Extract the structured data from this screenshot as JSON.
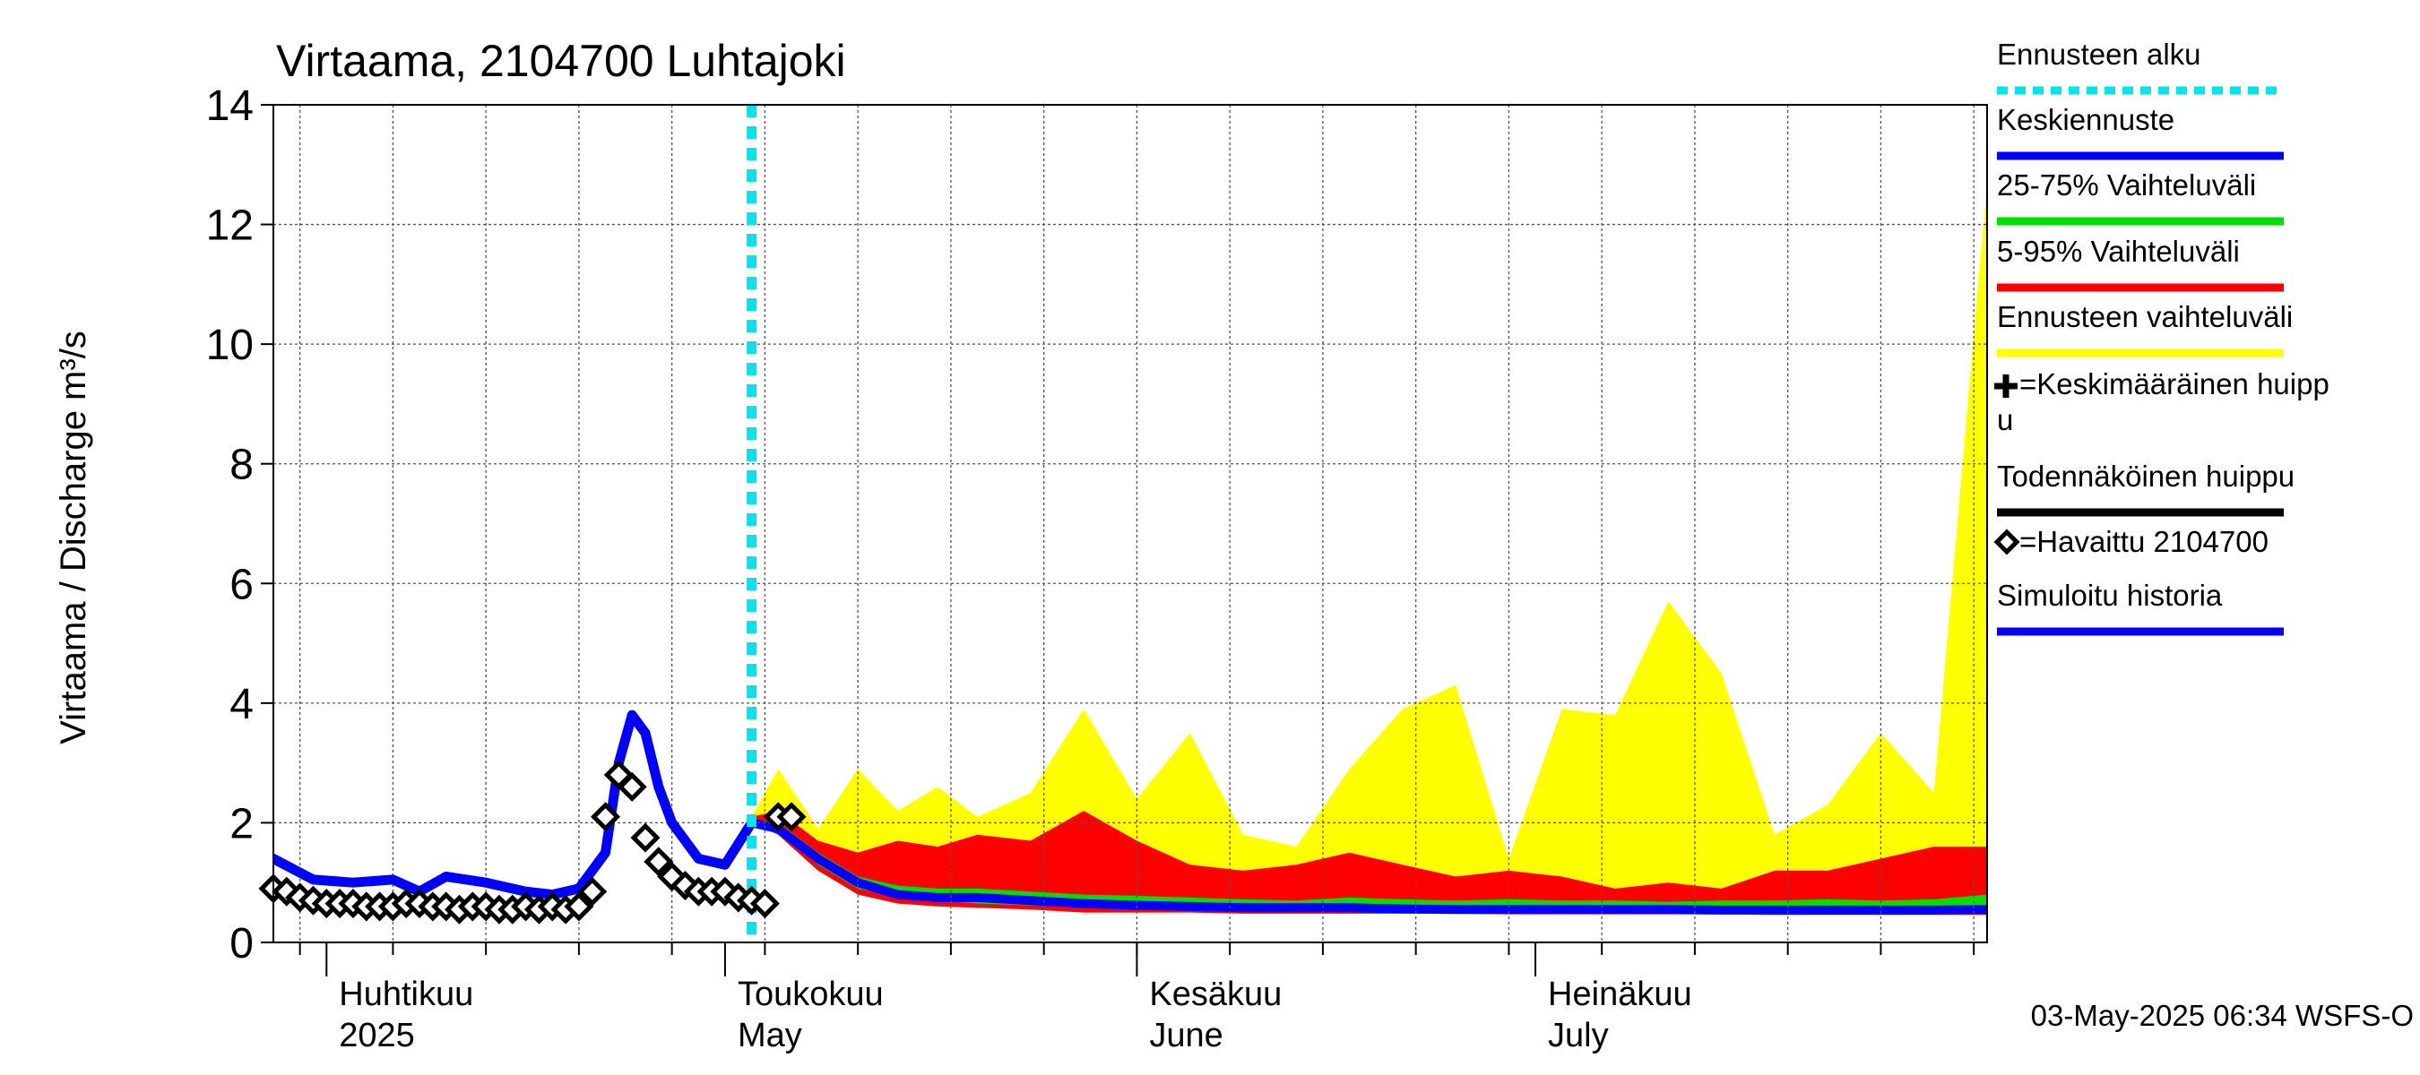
{
  "chart_data": {
    "type": "area",
    "title": "Virtaama, 2104700 Luhtajoki",
    "ylabel": "Virtaama / Discharge     m³/s",
    "ylim": [
      0,
      14
    ],
    "y_ticks": [
      0,
      2,
      4,
      6,
      8,
      10,
      12,
      14
    ],
    "x_range": [
      "2025-03-28",
      "2025-08-04"
    ],
    "grid": true,
    "forecast_start": "2025-05-03",
    "month_labels": [
      {
        "fi": "Huhtikuu",
        "en": "2025",
        "date": "2025-04-01"
      },
      {
        "fi": "Toukokuu",
        "en": "May",
        "date": "2025-05-01"
      },
      {
        "fi": "Kesäkuu",
        "en": "June",
        "date": "2025-06-01"
      },
      {
        "fi": "Heinäkuu",
        "en": "July",
        "date": "2025-07-01"
      }
    ],
    "footer": "03-May-2025 06:34 WSFS-O",
    "legend_position": "right",
    "legend": [
      {
        "label": "Ennusteen alku",
        "color": "#00e5ee",
        "style": "dotted"
      },
      {
        "label": "Keskiennuste",
        "color": "#0000ff",
        "style": "line"
      },
      {
        "label": "25-75% Vaihteluväli",
        "color": "#00e000",
        "style": "line"
      },
      {
        "label": "5-95% Vaihteluväli",
        "color": "#ff0000",
        "style": "line"
      },
      {
        "label": "Ennusteen vaihteluväli",
        "color": "#ffff00",
        "style": "line"
      },
      {
        "label": "=Keskimääräinen huippu",
        "color": "#000000",
        "style": "plus"
      },
      {
        "label": "Todennäköinen huippu",
        "color": "#000000",
        "style": "line"
      },
      {
        "label": "=Havaittu 2104700",
        "color": "#000000",
        "style": "diamond"
      },
      {
        "label": "Simuloitu historia",
        "color": "#0000ff",
        "style": "line"
      }
    ],
    "forecast_dates": [
      "2025-05-03",
      "2025-05-05",
      "2025-05-08",
      "2025-05-11",
      "2025-05-14",
      "2025-05-17",
      "2025-05-20",
      "2025-05-24",
      "2025-05-28",
      "2025-06-01",
      "2025-06-05",
      "2025-06-09",
      "2025-06-13",
      "2025-06-17",
      "2025-06-21",
      "2025-06-25",
      "2025-06-29",
      "2025-07-03",
      "2025-07-07",
      "2025-07-11",
      "2025-07-15",
      "2025-07-19",
      "2025-07-23",
      "2025-07-27",
      "2025-07-31",
      "2025-08-04"
    ],
    "series": [
      {
        "name": "Ennusteen vaihteluväli",
        "color": "#ffff00",
        "low": [
          2.0,
          1.9,
          1.4,
          1.0,
          0.8,
          0.7,
          0.6,
          0.6,
          0.5,
          0.5,
          0.5,
          0.5,
          0.5,
          0.5,
          0.5,
          0.5,
          0.5,
          0.5,
          0.5,
          0.5,
          0.5,
          0.5,
          0.5,
          0.5,
          0.5,
          0.5
        ],
        "high": [
          2.1,
          2.9,
          1.9,
          2.9,
          2.2,
          2.6,
          2.1,
          2.5,
          3.9,
          2.4,
          3.5,
          1.8,
          1.6,
          2.9,
          3.9,
          4.3,
          1.4,
          3.9,
          3.8,
          5.7,
          4.5,
          1.8,
          2.3,
          3.5,
          2.5,
          12.7
        ]
      },
      {
        "name": "5-95% Vaihteluväli",
        "color": "#ff0000",
        "low": [
          2.0,
          1.8,
          1.2,
          0.8,
          0.65,
          0.6,
          0.58,
          0.55,
          0.5,
          0.5,
          0.5,
          0.48,
          0.48,
          0.48,
          0.48,
          0.48,
          0.47,
          0.47,
          0.47,
          0.47,
          0.47,
          0.46,
          0.46,
          0.46,
          0.46,
          0.46
        ],
        "high": [
          2.1,
          2.2,
          1.7,
          1.5,
          1.7,
          1.6,
          1.8,
          1.7,
          2.2,
          1.7,
          1.3,
          1.2,
          1.3,
          1.5,
          1.3,
          1.1,
          1.2,
          1.1,
          0.9,
          1.0,
          0.9,
          1.2,
          1.2,
          1.4,
          1.6,
          1.6
        ]
      },
      {
        "name": "25-75% Vaihteluväli",
        "color": "#00e000",
        "low": [
          2.0,
          1.85,
          1.3,
          0.9,
          0.75,
          0.7,
          0.65,
          0.62,
          0.6,
          0.58,
          0.57,
          0.56,
          0.56,
          0.55,
          0.55,
          0.55,
          0.55,
          0.54,
          0.54,
          0.54,
          0.54,
          0.54,
          0.54,
          0.54,
          0.54,
          0.54
        ],
        "high": [
          2.05,
          2.0,
          1.5,
          1.1,
          0.95,
          0.9,
          0.9,
          0.85,
          0.8,
          0.78,
          0.75,
          0.72,
          0.7,
          0.75,
          0.72,
          0.7,
          0.72,
          0.7,
          0.7,
          0.68,
          0.7,
          0.7,
          0.72,
          0.7,
          0.72,
          0.8
        ]
      },
      {
        "name": "Keskiennuste",
        "color": "#0000ff",
        "values": [
          2.0,
          1.9,
          1.4,
          1.0,
          0.8,
          0.75,
          0.75,
          0.7,
          0.65,
          0.62,
          0.6,
          0.58,
          0.58,
          0.58,
          0.56,
          0.55,
          0.55,
          0.55,
          0.55,
          0.55,
          0.54,
          0.54,
          0.54,
          0.54,
          0.54,
          0.55
        ]
      }
    ],
    "sim_dates": [
      "2025-03-28",
      "2025-03-31",
      "2025-04-03",
      "2025-04-06",
      "2025-04-08",
      "2025-04-10",
      "2025-04-13",
      "2025-04-16",
      "2025-04-18",
      "2025-04-20",
      "2025-04-22",
      "2025-04-23",
      "2025-04-24",
      "2025-04-25",
      "2025-04-26",
      "2025-04-27",
      "2025-04-29",
      "2025-05-01",
      "2025-05-03"
    ],
    "sim_values": [
      1.4,
      1.05,
      1.0,
      1.05,
      0.85,
      1.1,
      1.0,
      0.85,
      0.8,
      0.9,
      1.5,
      3.0,
      3.8,
      3.5,
      2.6,
      2.0,
      1.4,
      1.3,
      2.0
    ],
    "obs_dates": [
      "2025-03-28",
      "2025-03-29",
      "2025-03-30",
      "2025-03-31",
      "2025-04-01",
      "2025-04-02",
      "2025-04-03",
      "2025-04-04",
      "2025-04-05",
      "2025-04-06",
      "2025-04-07",
      "2025-04-08",
      "2025-04-09",
      "2025-04-10",
      "2025-04-11",
      "2025-04-12",
      "2025-04-13",
      "2025-04-14",
      "2025-04-15",
      "2025-04-16",
      "2025-04-17",
      "2025-04-18",
      "2025-04-19",
      "2025-04-20",
      "2025-04-21",
      "2025-04-22",
      "2025-04-23",
      "2025-04-24",
      "2025-04-25",
      "2025-04-26",
      "2025-04-27",
      "2025-04-28",
      "2025-04-29",
      "2025-04-30",
      "2025-05-01",
      "2025-05-02",
      "2025-05-03",
      "2025-05-04",
      "2025-05-05",
      "2025-05-06"
    ],
    "obs_values": [
      0.9,
      0.85,
      0.75,
      0.7,
      0.65,
      0.65,
      0.65,
      0.6,
      0.6,
      0.6,
      0.65,
      0.65,
      0.6,
      0.6,
      0.55,
      0.6,
      0.6,
      0.55,
      0.55,
      0.6,
      0.55,
      0.6,
      0.55,
      0.6,
      0.85,
      2.1,
      2.8,
      2.6,
      1.75,
      1.35,
      1.1,
      0.95,
      0.85,
      0.85,
      0.85,
      0.75,
      0.7,
      0.65,
      2.1,
      2.1
    ]
  }
}
